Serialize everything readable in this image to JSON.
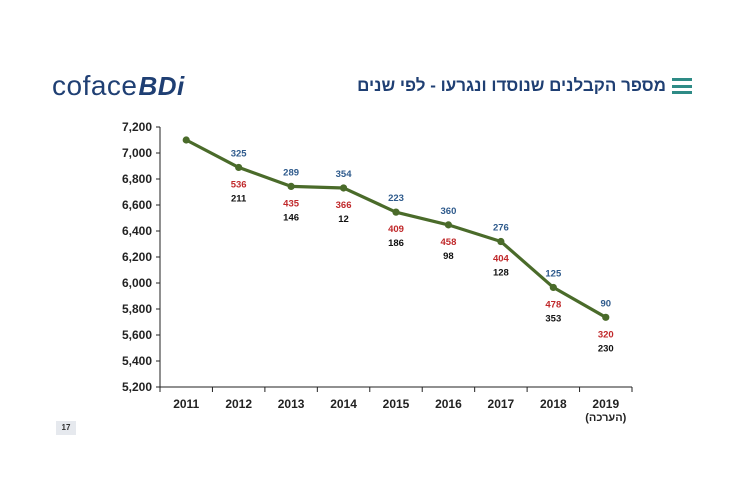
{
  "header": {
    "logo_text": "coface",
    "logo_suffix": "BDi",
    "title": "מספר הקבלנים שנוסדו ונגרעו - לפי שנים"
  },
  "page_number": "17",
  "colors": {
    "line": "#4a6b2a",
    "founded": "#2e5a8c",
    "closed": "#c0282a",
    "net": "#111111",
    "brand": "#1f3f73",
    "icon": "#2e8b86"
  },
  "chart_data": {
    "type": "line",
    "title": "",
    "xlabel": "",
    "ylabel": "",
    "ylim": [
      5200,
      7200
    ],
    "yticks": [
      5200,
      5400,
      5600,
      5800,
      6000,
      6200,
      6400,
      6600,
      6800,
      7000,
      7200
    ],
    "ytick_labels": [
      "5,200",
      "5,400",
      "5,600",
      "5,800",
      "6,000",
      "6,200",
      "6,400",
      "6,600",
      "6,800",
      "7,000",
      "7,200"
    ],
    "categories": [
      "2011",
      "2012",
      "2013",
      "2014",
      "2015",
      "2016",
      "2017",
      "2018",
      "2019"
    ],
    "category_sublabels": [
      "",
      "",
      "",
      "",
      "",
      "",
      "",
      "",
      "(הערכה)"
    ],
    "values": [
      7100,
      6889,
      6743,
      6731,
      6545,
      6447,
      6319,
      5966,
      5736
    ],
    "founded_labels": [
      "",
      "325",
      "289",
      "354",
      "223",
      "360",
      "276",
      "125",
      "90"
    ],
    "closed_labels": [
      "",
      "536",
      "435",
      "366",
      "409",
      "458",
      "404",
      "478",
      "320"
    ],
    "net_labels": [
      "",
      "211",
      "146",
      "12",
      "186",
      "98",
      "128",
      "353",
      "230"
    ]
  }
}
